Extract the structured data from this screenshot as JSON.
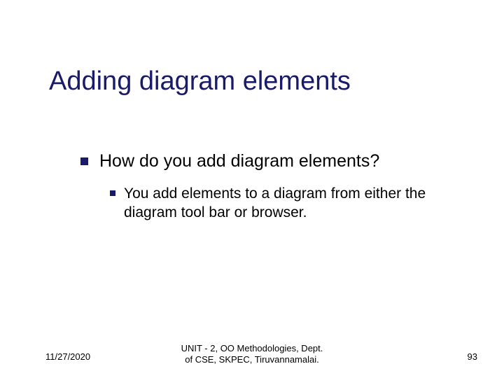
{
  "colors": {
    "title_color": "#1a1a6b",
    "bullet_color": "#1a1a6b",
    "body_text_color": "#000000",
    "background": "#ffffff"
  },
  "typography": {
    "title_fontsize": 38,
    "level1_fontsize": 25,
    "level2_fontsize": 21,
    "footer_fontsize": 13,
    "font_family": "Verdana"
  },
  "title": "Adding diagram elements",
  "bullets": {
    "level1": {
      "text": "How do you add diagram elements?",
      "bullet_size": 11
    },
    "level2": {
      "text": "You add elements to a diagram from either the diagram tool bar or browser.",
      "bullet_size": 8
    }
  },
  "footer": {
    "date": "11/27/2020",
    "center_line1": "UNIT - 2, OO Methodologies, Dept.",
    "center_line2": "of CSE, SKPEC, Tiruvannamalai.",
    "page_number": "93"
  }
}
